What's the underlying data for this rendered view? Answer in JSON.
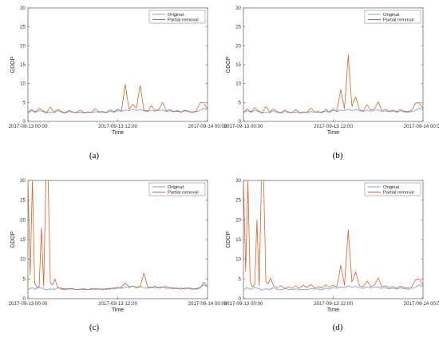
{
  "chart_data": [
    {
      "panel": "a",
      "caption": "(a)",
      "type": "line",
      "xlabel": "Time",
      "ylabel": "GDOP",
      "ylim": [
        0,
        30
      ],
      "yticks": [
        "0",
        "5",
        "10",
        "15",
        "20",
        "25",
        "30"
      ],
      "xticks": [
        "2017-09-13 00:00",
        "2017-09-13 12:00",
        "2017-09-14 00:00"
      ],
      "legend": {
        "position": "top-right",
        "entries": [
          "Original",
          "Partial removal"
        ]
      },
      "series": [
        {
          "name": "Original",
          "color": "#6fa8dc",
          "x": [
            0,
            0.5,
            1,
            1.5,
            2,
            2.5,
            3,
            3.5,
            4,
            4.5,
            5,
            5.5,
            6,
            6.5,
            7,
            7.5,
            8,
            8.5,
            9,
            9.5,
            10,
            10.5,
            11,
            11.5,
            12,
            12.5,
            13,
            13.5,
            14,
            14.5,
            15,
            15.5,
            16,
            16.5,
            17,
            17.5,
            18,
            18.5,
            19,
            19.5,
            20,
            20.5,
            21,
            21.5,
            22,
            22.5,
            23,
            23.5,
            24
          ],
          "values": [
            2.3,
            2.8,
            2.4,
            2.9,
            2.6,
            2.2,
            2.5,
            2.3,
            2.8,
            2.4,
            2.2,
            2.6,
            2.4,
            2.3,
            2.5,
            2.2,
            2.4,
            2.3,
            2.6,
            2.4,
            2.5,
            2.3,
            2.7,
            2.4,
            2.9,
            2.6,
            3.0,
            2.8,
            3.2,
            2.9,
            3.1,
            2.8,
            2.6,
            3.0,
            2.7,
            2.9,
            3.0,
            2.6,
            2.8,
            2.5,
            2.7,
            2.4,
            2.8,
            2.5,
            2.4,
            2.6,
            2.9,
            3.5,
            3.0
          ]
        },
        {
          "name": "Partial removal",
          "color": "#d4622a",
          "x": [
            0,
            0.5,
            1,
            1.5,
            2,
            2.5,
            3,
            3.5,
            4,
            4.5,
            5,
            5.5,
            6,
            6.5,
            7,
            7.5,
            8,
            8.5,
            9,
            9.5,
            10,
            10.5,
            11,
            11.5,
            12,
            12.5,
            13,
            13.5,
            14,
            14.5,
            15,
            15.5,
            16,
            16.5,
            17,
            17.5,
            18,
            18.5,
            19,
            19.5,
            20,
            20.5,
            21,
            21.5,
            22,
            22.5,
            23,
            23.5,
            24
          ],
          "values": [
            2.4,
            3.2,
            2.5,
            3.5,
            2.8,
            2.3,
            3.8,
            2.5,
            3.2,
            2.6,
            2.3,
            2.9,
            2.5,
            2.4,
            3.0,
            2.3,
            2.5,
            2.4,
            3.4,
            2.5,
            2.6,
            2.4,
            3.1,
            2.5,
            3.3,
            2.8,
            9.8,
            3.2,
            4.5,
            3.5,
            9.5,
            3.0,
            2.7,
            4.2,
            2.9,
            3.2,
            5.0,
            2.8,
            3.1,
            2.6,
            2.9,
            2.5,
            3.0,
            2.6,
            2.5,
            2.8,
            4.9,
            5.0,
            3.2
          ]
        }
      ]
    },
    {
      "panel": "b",
      "caption": "(b)",
      "type": "line",
      "xlabel": "Time",
      "ylabel": "GDOP",
      "ylim": [
        0,
        30
      ],
      "yticks": [
        "0",
        "5",
        "10",
        "15",
        "20",
        "25",
        "30"
      ],
      "xticks": [
        "2017-09-13 00:00",
        "2017-09-13 12:00",
        "2017-09-14 00:00"
      ],
      "legend": {
        "position": "top-right",
        "entries": [
          "Original",
          "Partial removal"
        ]
      },
      "series": [
        {
          "name": "Original",
          "color": "#6fa8dc",
          "x": [
            0,
            0.5,
            1,
            1.5,
            2,
            2.5,
            3,
            3.5,
            4,
            4.5,
            5,
            5.5,
            6,
            6.5,
            7,
            7.5,
            8,
            8.5,
            9,
            9.5,
            10,
            10.5,
            11,
            11.5,
            12,
            12.5,
            13,
            13.5,
            14,
            14.5,
            15,
            15.5,
            16,
            16.5,
            17,
            17.5,
            18,
            18.5,
            19,
            19.5,
            20,
            20.5,
            21,
            21.5,
            22,
            22.5,
            23,
            23.5,
            24
          ],
          "values": [
            2.3,
            2.8,
            2.4,
            2.9,
            2.6,
            2.2,
            2.5,
            2.3,
            2.8,
            2.4,
            2.2,
            2.6,
            2.4,
            2.3,
            2.5,
            2.2,
            2.4,
            2.3,
            2.6,
            2.4,
            2.5,
            2.3,
            2.7,
            2.4,
            2.9,
            2.6,
            3.0,
            2.8,
            3.2,
            2.9,
            3.1,
            2.8,
            2.6,
            3.0,
            2.7,
            2.9,
            3.0,
            2.6,
            2.8,
            2.5,
            2.7,
            2.4,
            2.8,
            2.5,
            2.4,
            2.6,
            2.9,
            3.5,
            3.0
          ]
        },
        {
          "name": "Partial removal",
          "color": "#d4622a",
          "x": [
            0,
            0.5,
            1,
            1.5,
            2,
            2.5,
            3,
            3.5,
            4,
            4.5,
            5,
            5.5,
            6,
            6.5,
            7,
            7.5,
            8,
            8.5,
            9,
            9.5,
            10,
            10.5,
            11,
            11.5,
            12,
            12.5,
            13,
            13.5,
            14,
            14.5,
            15,
            15.5,
            16,
            16.5,
            17,
            17.5,
            18,
            18.5,
            19,
            19.5,
            20,
            20.5,
            21,
            21.5,
            22,
            22.5,
            23,
            23.5,
            24
          ],
          "values": [
            2.4,
            3.3,
            2.5,
            3.6,
            2.8,
            2.3,
            3.9,
            2.5,
            3.3,
            2.6,
            2.3,
            3.0,
            2.5,
            2.4,
            3.1,
            2.3,
            2.5,
            2.4,
            3.5,
            2.5,
            2.6,
            2.4,
            3.2,
            2.5,
            3.4,
            2.8,
            8.5,
            3.3,
            17.5,
            4.0,
            6.5,
            3.1,
            2.8,
            4.4,
            3.0,
            3.3,
            5.2,
            2.9,
            3.2,
            2.7,
            3.0,
            2.6,
            3.1,
            2.7,
            2.6,
            2.9,
            4.8,
            5.0,
            3.3
          ]
        }
      ]
    },
    {
      "panel": "c",
      "caption": "(c)",
      "type": "line",
      "xlabel": "Time",
      "ylabel": "GDOP",
      "ylim": [
        0,
        30
      ],
      "yticks": [
        "0",
        "5",
        "10",
        "15",
        "20",
        "25",
        "30"
      ],
      "xticks": [
        "2017-09-13 00:00",
        "2017-09-13 12:00",
        "2017-09-14 00:00"
      ],
      "legend": {
        "position": "top-right",
        "entries": [
          "Original",
          "Partial removal"
        ]
      },
      "series": [
        {
          "name": "Original",
          "color": "#6fa8dc",
          "x": [
            0,
            0.5,
            1,
            1.5,
            2,
            2.5,
            3,
            3.5,
            4,
            4.5,
            5,
            5.5,
            6,
            6.5,
            7,
            7.5,
            8,
            8.5,
            9,
            9.5,
            10,
            10.5,
            11,
            11.5,
            12,
            12.5,
            13,
            13.5,
            14,
            14.5,
            15,
            15.5,
            16,
            16.5,
            17,
            17.5,
            18,
            18.5,
            19,
            19.5,
            20,
            20.5,
            21,
            21.5,
            22,
            22.5,
            23,
            23.5,
            24
          ],
          "values": [
            2.3,
            2.8,
            2.4,
            2.9,
            2.6,
            2.2,
            2.5,
            2.3,
            2.8,
            2.4,
            2.2,
            2.6,
            2.4,
            2.3,
            2.5,
            2.2,
            2.4,
            2.3,
            2.6,
            2.4,
            2.5,
            2.3,
            2.7,
            2.4,
            2.9,
            2.6,
            3.0,
            2.8,
            3.2,
            2.9,
            3.1,
            2.8,
            2.6,
            3.0,
            2.7,
            2.9,
            3.0,
            2.6,
            2.8,
            2.5,
            2.7,
            2.4,
            2.8,
            2.5,
            2.4,
            2.6,
            2.9,
            3.5,
            3.0
          ]
        },
        {
          "name": "Partial removal",
          "color": "#d4622a",
          "x": [
            0,
            0.3,
            0.6,
            0.9,
            1.2,
            1.5,
            1.8,
            2.1,
            2.4,
            2.7,
            3.0,
            3.3,
            3.6,
            4,
            4.5,
            5,
            5.5,
            6,
            6.5,
            7,
            7.5,
            8,
            8.5,
            9,
            9.5,
            10,
            10.5,
            11,
            11.5,
            12,
            12.5,
            13,
            13.5,
            14,
            14.5,
            15,
            15.5,
            16,
            16.5,
            17,
            17.5,
            18,
            18.5,
            19,
            19.5,
            20,
            20.5,
            21,
            21.5,
            22,
            22.5,
            23,
            23.5,
            24
          ],
          "values": [
            30,
            6,
            30,
            4.0,
            2.8,
            3.2,
            18,
            3.0,
            30,
            30,
            4.0,
            3.5,
            5.0,
            2.8,
            2.6,
            2.5,
            2.4,
            2.6,
            2.3,
            2.4,
            2.5,
            2.3,
            2.6,
            2.4,
            2.5,
            2.3,
            2.6,
            2.4,
            2.8,
            2.6,
            2.9,
            4.0,
            3.0,
            3.2,
            2.8,
            3.0,
            6.5,
            3.0,
            2.8,
            3.2,
            2.7,
            2.9,
            3.1,
            2.6,
            2.8,
            2.5,
            2.7,
            2.4,
            2.8,
            2.5,
            2.4,
            2.7,
            4.2,
            3.0
          ]
        }
      ]
    },
    {
      "panel": "d",
      "caption": "(d)",
      "type": "line",
      "xlabel": "Time",
      "ylabel": "GDOP",
      "ylim": [
        0,
        30
      ],
      "yticks": [
        "0",
        "5",
        "10",
        "15",
        "20",
        "25",
        "30"
      ],
      "xticks": [
        "2017-09-13 00:00",
        "2017-09-13 12:00",
        "2017-09-14 00:00"
      ],
      "legend": {
        "position": "top-right",
        "entries": [
          "Original",
          "Partial removal"
        ]
      },
      "series": [
        {
          "name": "Original",
          "color": "#6fa8dc",
          "x": [
            0,
            0.5,
            1,
            1.5,
            2,
            2.5,
            3,
            3.5,
            4,
            4.5,
            5,
            5.5,
            6,
            6.5,
            7,
            7.5,
            8,
            8.5,
            9,
            9.5,
            10,
            10.5,
            11,
            11.5,
            12,
            12.5,
            13,
            13.5,
            14,
            14.5,
            15,
            15.5,
            16,
            16.5,
            17,
            17.5,
            18,
            18.5,
            19,
            19.5,
            20,
            20.5,
            21,
            21.5,
            22,
            22.5,
            23,
            23.5,
            24
          ],
          "values": [
            2.3,
            2.8,
            2.4,
            2.9,
            2.6,
            2.2,
            2.5,
            2.3,
            2.8,
            2.4,
            2.2,
            2.6,
            2.4,
            2.3,
            2.5,
            2.2,
            2.4,
            2.3,
            2.6,
            2.4,
            2.5,
            2.3,
            2.7,
            2.4,
            2.9,
            2.6,
            3.0,
            2.8,
            3.2,
            2.9,
            3.1,
            2.8,
            2.6,
            3.0,
            2.7,
            2.9,
            3.0,
            2.6,
            2.8,
            2.5,
            2.7,
            2.4,
            2.8,
            2.5,
            2.4,
            2.6,
            2.9,
            3.5,
            3.0
          ]
        },
        {
          "name": "Partial removal",
          "color": "#d4622a",
          "x": [
            0,
            0.3,
            0.6,
            0.9,
            1.2,
            1.5,
            1.8,
            2.1,
            2.4,
            2.7,
            3.0,
            3.3,
            3.6,
            4,
            4.5,
            5,
            5.5,
            6,
            6.5,
            7,
            7.5,
            8,
            8.5,
            9,
            9.5,
            10,
            10.5,
            11,
            11.5,
            12,
            12.5,
            13,
            13.5,
            14,
            14.5,
            15,
            15.5,
            16,
            16.5,
            17,
            17.5,
            18,
            18.5,
            19,
            19.5,
            20,
            20.5,
            21,
            21.5,
            22,
            22.5,
            23,
            23.5,
            24
          ],
          "values": [
            30,
            7,
            30,
            4.2,
            3.0,
            3.5,
            20,
            3.2,
            30,
            30,
            4.3,
            3.8,
            5.2,
            3.4,
            2.8,
            3.3,
            2.6,
            3.0,
            2.7,
            3.2,
            2.6,
            3.4,
            2.8,
            3.6,
            2.7,
            3.0,
            2.8,
            3.5,
            2.9,
            3.4,
            3.0,
            8.5,
            3.4,
            17.5,
            4.2,
            6.8,
            3.3,
            3.0,
            4.5,
            3.1,
            3.4,
            5.3,
            3.0,
            3.3,
            2.8,
            3.1,
            2.7,
            3.2,
            2.8,
            2.7,
            3.0,
            4.8,
            5.0,
            3.3
          ]
        }
      ]
    }
  ]
}
